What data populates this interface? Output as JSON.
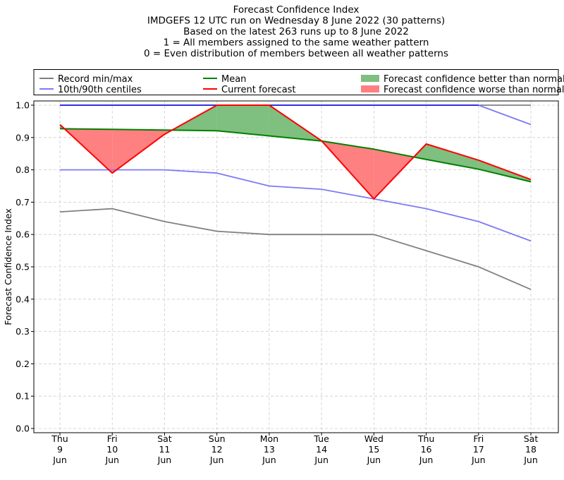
{
  "chart_data": {
    "type": "line",
    "title_lines": [
      "Forecast Confidence Index",
      "IMDGEFS 12 UTC run on Wednesday 8 June 2022 (30 patterns)",
      "Based on the latest 263 runs up to 8 June 2022",
      "1 = All members assigned to the same weather pattern",
      "0 = Even distribution of members between all weather patterns"
    ],
    "xlabel": "",
    "ylabel": "Forecast Confidence Index",
    "ylim": [
      0,
      1.0
    ],
    "yticks": [
      "0.0",
      "0.1",
      "0.2",
      "0.3",
      "0.4",
      "0.5",
      "0.6",
      "0.7",
      "0.8",
      "0.9",
      "1.0"
    ],
    "grid": true,
    "legend_placement": "top",
    "categories": [
      [
        "Thu",
        "9",
        "Jun"
      ],
      [
        "Fri",
        "10",
        "Jun"
      ],
      [
        "Sat",
        "11",
        "Jun"
      ],
      [
        "Sun",
        "12",
        "Jun"
      ],
      [
        "Mon",
        "13",
        "Jun"
      ],
      [
        "Tue",
        "14",
        "Jun"
      ],
      [
        "Wed",
        "15",
        "Jun"
      ],
      [
        "Thu",
        "16",
        "Jun"
      ],
      [
        "Fri",
        "17",
        "Jun"
      ],
      [
        "Sat",
        "18",
        "Jun"
      ]
    ],
    "series": {
      "record_min": [
        0.67,
        0.68,
        0.64,
        0.61,
        0.6,
        0.6,
        0.6,
        0.55,
        0.5,
        0.43
      ],
      "record_max": [
        1.0,
        1.0,
        1.0,
        1.0,
        1.0,
        1.0,
        1.0,
        1.0,
        1.0,
        1.0
      ],
      "p10": [
        0.8,
        0.8,
        0.8,
        0.79,
        0.75,
        0.74,
        0.71,
        0.68,
        0.64,
        0.58
      ],
      "p90": [
        1.0,
        1.0,
        1.0,
        1.0,
        1.0,
        1.0,
        1.0,
        1.0,
        1.0,
        0.94
      ],
      "mean": [
        0.927,
        0.925,
        0.923,
        0.921,
        0.905,
        0.889,
        0.864,
        0.832,
        0.802,
        0.763
      ],
      "current": [
        0.94,
        0.79,
        0.91,
        1.0,
        1.0,
        0.89,
        0.71,
        0.88,
        0.83,
        0.77
      ]
    },
    "legend": [
      {
        "key": "record",
        "label": "Record min/max",
        "kind": "line",
        "color": "#808080"
      },
      {
        "key": "mean",
        "label": "Mean",
        "kind": "line",
        "color": "#008000"
      },
      {
        "key": "better",
        "label": "Forecast confidence better than normal",
        "kind": "patch",
        "color": "#7fbf7f"
      },
      {
        "key": "centiles",
        "label": "10th/90th centiles",
        "kind": "line",
        "color": "#7b7bf5"
      },
      {
        "key": "current",
        "label": "Current forecast",
        "kind": "line",
        "color": "#ff0000"
      },
      {
        "key": "worse",
        "label": "Forecast confidence worse than normal",
        "kind": "patch",
        "color": "#ff8080"
      }
    ],
    "colors": {
      "record": "#808080",
      "centiles": "#7b7bf5",
      "max_line": "#3030e0",
      "mean": "#008000",
      "current": "#ff0000",
      "better_fill": "#7fbf7f",
      "worse_fill": "#ff8080",
      "grid": "#cccccc"
    }
  }
}
